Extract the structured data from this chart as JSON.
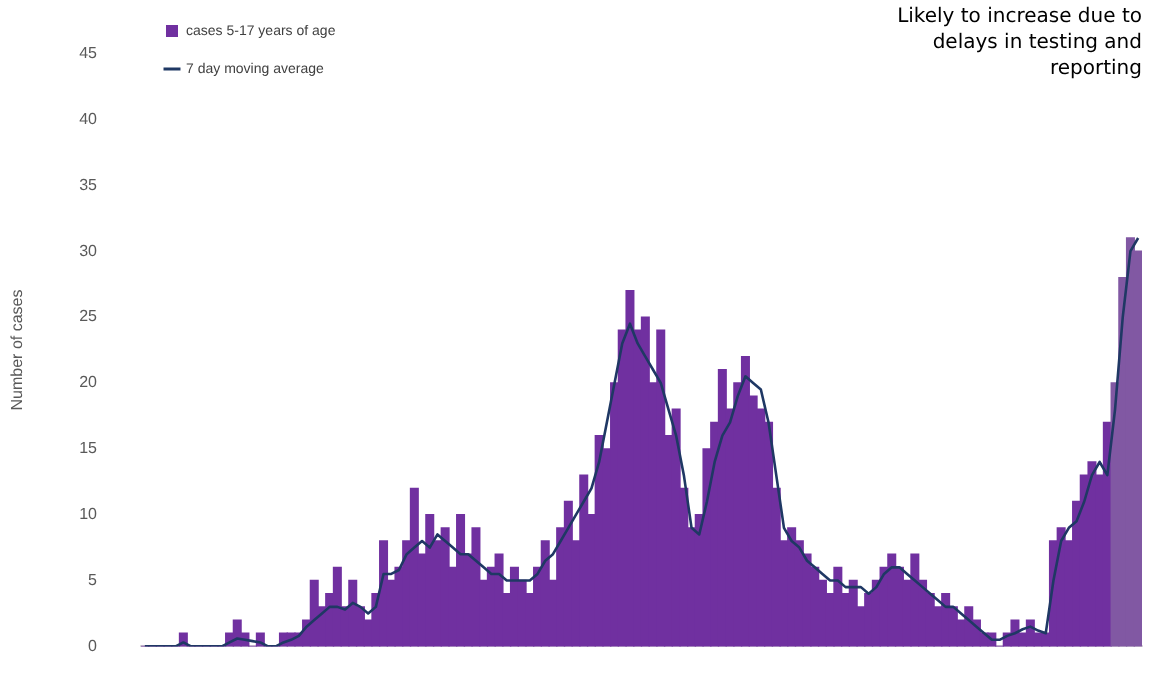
{
  "chart_data": {
    "type": "bar",
    "ylabel": "Number of cases",
    "categories": [
      null,
      null,
      null,
      null,
      null,
      null,
      null,
      null,
      null,
      null,
      null,
      null,
      null,
      null,
      null,
      null,
      null,
      null,
      null,
      null,
      null,
      null,
      null,
      null,
      null,
      null,
      null,
      null,
      null,
      null,
      null,
      null,
      null,
      null,
      null,
      null,
      null,
      null,
      null,
      null,
      null,
      null,
      null,
      null,
      null,
      null,
      null,
      null,
      null,
      null,
      null,
      null,
      null,
      null,
      null,
      null,
      null,
      null,
      null,
      null,
      null,
      null,
      null,
      null,
      null,
      null,
      null,
      null,
      null,
      null,
      null,
      null,
      null,
      null,
      null,
      null,
      null,
      null,
      null,
      null,
      null,
      null,
      null,
      null,
      null,
      null,
      null,
      null,
      null,
      null,
      null,
      null,
      null,
      null,
      null,
      null,
      null,
      null,
      null,
      null,
      null,
      null,
      null,
      null,
      null,
      null,
      null,
      null,
      null,
      null,
      null,
      null,
      null,
      null,
      null,
      null,
      null,
      null,
      null,
      null,
      null,
      null,
      null,
      null,
      null,
      null,
      null,
      null,
      null,
      null
    ],
    "series": [
      {
        "name": "cases 5-17 years of age",
        "type": "bar",
        "color": "#7030a0",
        "colors": [
          "#7030a0",
          "#7030a0",
          "#7030a0",
          "#7030a0",
          "#7030a0",
          "#7030a0",
          "#7030a0",
          "#7030a0",
          "#7030a0",
          "#7030a0",
          "#7030a0",
          "#7030a0",
          "#7030a0",
          "#7030a0",
          "#7030a0",
          "#7030a0",
          "#7030a0",
          "#7030a0",
          "#7030a0",
          "#7030a0",
          "#7030a0",
          "#7030a0",
          "#7030a0",
          "#7030a0",
          "#7030a0",
          "#7030a0",
          "#7030a0",
          "#7030a0",
          "#7030a0",
          "#7030a0",
          "#7030a0",
          "#7030a0",
          "#7030a0",
          "#7030a0",
          "#7030a0",
          "#7030a0",
          "#7030a0",
          "#7030a0",
          "#7030a0",
          "#7030a0",
          "#7030a0",
          "#7030a0",
          "#7030a0",
          "#7030a0",
          "#7030a0",
          "#7030a0",
          "#7030a0",
          "#7030a0",
          "#7030a0",
          "#7030a0",
          "#7030a0",
          "#7030a0",
          "#7030a0",
          "#7030a0",
          "#7030a0",
          "#7030a0",
          "#7030a0",
          "#7030a0",
          "#7030a0",
          "#7030a0",
          "#7030a0",
          "#7030a0",
          "#7030a0",
          "#7030a0",
          "#7030a0",
          "#7030a0",
          "#7030a0",
          "#7030a0",
          "#7030a0",
          "#7030a0",
          "#7030a0",
          "#7030a0",
          "#7030a0",
          "#7030a0",
          "#7030a0",
          "#7030a0",
          "#7030a0",
          "#7030a0",
          "#7030a0",
          "#7030a0",
          "#7030a0",
          "#7030a0",
          "#7030a0",
          "#7030a0",
          "#7030a0",
          "#7030a0",
          "#7030a0",
          "#7030a0",
          "#7030a0",
          "#7030a0",
          "#7030a0",
          "#7030a0",
          "#7030a0",
          "#7030a0",
          "#7030a0",
          "#7030a0",
          "#7030a0",
          "#7030a0",
          "#7030a0",
          "#7030a0",
          "#7030a0",
          "#7030a0",
          "#7030a0",
          "#7030a0",
          "#7030a0",
          "#7030a0",
          "#7030a0",
          "#7030a0",
          "#7030a0",
          "#7030a0",
          "#7030a0",
          "#7030a0",
          "#7030a0",
          "#7030a0",
          "#7030a0",
          "#7030a0",
          "#7030a0",
          "#7030a0",
          "#7030a0",
          "#7030a0",
          "#7030a0",
          "#7030a0",
          "#7030a0",
          "#7030a0",
          "#7030a0",
          "#7030a0",
          "#8158a3",
          "#8158a3",
          "#8158a3",
          "#8158a3"
        ],
        "values": [
          0,
          0,
          0,
          0,
          0,
          1,
          0,
          0,
          0,
          0,
          0,
          1,
          2,
          1,
          0,
          1,
          0,
          0,
          1,
          1,
          1,
          2,
          5,
          3,
          4,
          6,
          3,
          5,
          3,
          2,
          4,
          8,
          5,
          6,
          8,
          12,
          7,
          10,
          8,
          9,
          6,
          10,
          7,
          9,
          5,
          6,
          7,
          4,
          6,
          5,
          4,
          6,
          8,
          5,
          9,
          11,
          8,
          13,
          10,
          16,
          15,
          20,
          24,
          27,
          24,
          25,
          20,
          24,
          16,
          18,
          12,
          9,
          10,
          15,
          17,
          21,
          18,
          20,
          22,
          19,
          18,
          17,
          12,
          8,
          9,
          8,
          7,
          6,
          5,
          4,
          6,
          4,
          5,
          3,
          4,
          5,
          6,
          7,
          6,
          5,
          7,
          5,
          4,
          3,
          4,
          3,
          2,
          3,
          2,
          1,
          1,
          0,
          1,
          2,
          1,
          2,
          1,
          1,
          8,
          9,
          8,
          11,
          13,
          14,
          13,
          17,
          20,
          28,
          31,
          30
        ]
      },
      {
        "name": "7 day moving average",
        "type": "line",
        "color": "#1f3864",
        "values": [
          0,
          0,
          0,
          0,
          0,
          0.3,
          0,
          0,
          0,
          0,
          0,
          0.3,
          0.6,
          0.5,
          0.4,
          0.3,
          0,
          0,
          0.3,
          0.5,
          0.8,
          1.5,
          2,
          2.5,
          3,
          3,
          2.8,
          3.3,
          3,
          2.5,
          3,
          5.5,
          5.5,
          5.8,
          7,
          7.5,
          8,
          7.5,
          8.5,
          8,
          7.5,
          7,
          7,
          6.5,
          6,
          5.5,
          5.5,
          5,
          5,
          5,
          5,
          5.5,
          6.5,
          7,
          8,
          9,
          10,
          11,
          12,
          14,
          17,
          20,
          23,
          24.5,
          23,
          22,
          21,
          20,
          18,
          16,
          13,
          9,
          8.5,
          11,
          14,
          16,
          17,
          19,
          20.5,
          20,
          19.5,
          17,
          13,
          9,
          8,
          7.5,
          6.5,
          6,
          5.5,
          5,
          5,
          4.5,
          4.5,
          4.5,
          4,
          4.5,
          5.5,
          6,
          6,
          5.5,
          5,
          4.5,
          4,
          3.5,
          3,
          3,
          2.5,
          2,
          1.5,
          1,
          0.5,
          0.5,
          0.8,
          1,
          1.3,
          1.5,
          1.2,
          1,
          5,
          8,
          9,
          9.5,
          11,
          13,
          14,
          13,
          18,
          25,
          30,
          31
        ]
      }
    ],
    "ylim": [
      0,
      45
    ],
    "yticks": [
      0,
      5,
      10,
      15,
      20,
      25,
      30,
      35,
      40,
      45
    ],
    "grid": false,
    "legend": "top left",
    "tick_labels": "y",
    "annotations": [
      "Likely to increase due to delays in testing and reporting"
    ]
  }
}
